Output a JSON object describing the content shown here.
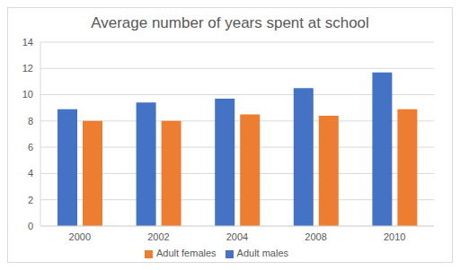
{
  "chart_data": {
    "type": "bar",
    "title": "Average number of years spent at school",
    "categories": [
      "2000",
      "2002",
      "2004",
      "2008",
      "2010"
    ],
    "series": [
      {
        "name": "Adult males",
        "color": "#4472c4",
        "values": [
          8.9,
          9.4,
          9.7,
          10.5,
          11.7
        ]
      },
      {
        "name": "Adult females",
        "color": "#ed7d31",
        "values": [
          8.0,
          8.0,
          8.5,
          8.4,
          8.9
        ]
      }
    ],
    "ylim": [
      0,
      14
    ],
    "yticks": [
      0,
      2,
      4,
      6,
      8,
      10,
      12,
      14
    ],
    "grid": true,
    "legend": "bottom"
  }
}
